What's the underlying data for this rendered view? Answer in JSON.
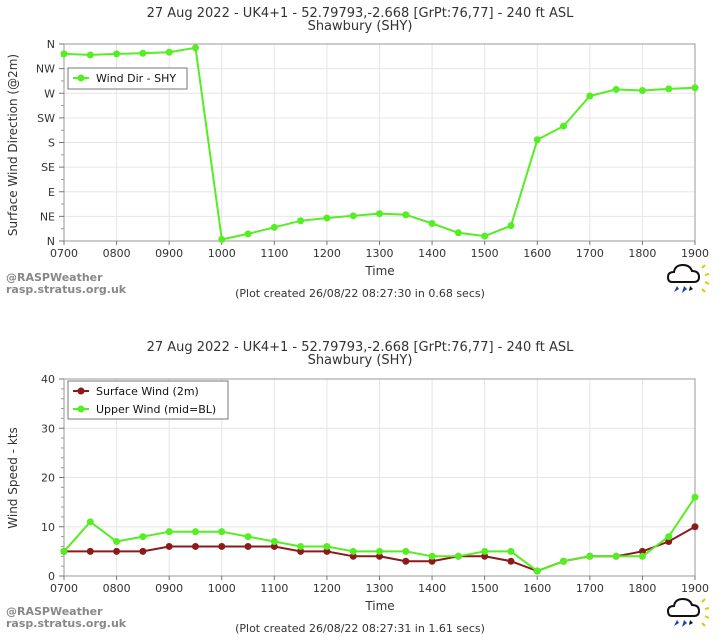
{
  "chart_data": [
    {
      "type": "line",
      "title": "27 Aug 2022 - UK4+1 - 52.79793,-2.668 [GrPt:76,77]  - 240 ft ASL",
      "subtitle": "Shawbury (SHY)",
      "xlabel": "Time",
      "ylabel": "Surface Wind Direction (@2m)",
      "x_ticks": [
        "0700",
        "0800",
        "0900",
        "1000",
        "1100",
        "1200",
        "1300",
        "1400",
        "1500",
        "1600",
        "1700",
        "1800",
        "1900"
      ],
      "y_ticks": [
        "N",
        "NE",
        "E",
        "SE",
        "S",
        "SW",
        "W",
        "NW",
        "N"
      ],
      "ylim": [
        0,
        360
      ],
      "grid": true,
      "legend": "top-left",
      "footer": "(Plot created 26/08/22 08:27:30 in 0.68 secs)",
      "series": [
        {
          "name": "Wind Dir - SHY",
          "color": "#55ee22",
          "x": [
            7.0,
            7.5,
            8.0,
            8.5,
            9.0,
            9.5,
            10.0,
            10.5,
            11.0,
            11.5,
            12.0,
            12.5,
            13.0,
            13.5,
            14.0,
            14.5,
            15.0,
            15.5,
            16.0,
            16.5,
            17.0,
            17.5,
            18.0,
            18.5,
            19.0
          ],
          "values": [
            342,
            340,
            342,
            343,
            345,
            353,
            3,
            13,
            25,
            37,
            42,
            46,
            50,
            48,
            32,
            15,
            9,
            28,
            185,
            210,
            265,
            277,
            275,
            278,
            280
          ]
        }
      ]
    },
    {
      "type": "line",
      "title": "27 Aug 2022 - UK4+1 - 52.79793,-2.668 [GrPt:76,77]  - 240 ft ASL",
      "subtitle": "Shawbury (SHY)",
      "xlabel": "Time",
      "ylabel": "Wind Speed - kts",
      "x_ticks": [
        "0700",
        "0800",
        "0900",
        "1000",
        "1100",
        "1200",
        "1300",
        "1400",
        "1500",
        "1600",
        "1700",
        "1800",
        "1900"
      ],
      "y_ticks": [
        "0",
        "10",
        "20",
        "30",
        "40"
      ],
      "ylim": [
        0,
        40
      ],
      "grid": true,
      "legend": "top-left",
      "footer": "(Plot created 26/08/22 08:27:31 in 1.61 secs)",
      "series": [
        {
          "name": "Surface Wind (2m)",
          "color": "#8b1a1a",
          "x": [
            7.0,
            7.5,
            8.0,
            8.5,
            9.0,
            9.5,
            10.0,
            10.5,
            11.0,
            11.5,
            12.0,
            12.5,
            13.0,
            13.5,
            14.0,
            14.5,
            15.0,
            15.5,
            16.0,
            16.5,
            17.0,
            17.5,
            18.0,
            18.5,
            19.0
          ],
          "values": [
            5,
            5,
            5,
            5,
            6,
            6,
            6,
            6,
            6,
            5,
            5,
            4,
            4,
            3,
            3,
            4,
            4,
            3,
            1,
            3,
            4,
            4,
            5,
            7,
            10
          ]
        },
        {
          "name": "Upper Wind (mid=BL)",
          "color": "#55ee22",
          "x": [
            7.0,
            7.5,
            8.0,
            8.5,
            9.0,
            9.5,
            10.0,
            10.5,
            11.0,
            11.5,
            12.0,
            12.5,
            13.0,
            13.5,
            14.0,
            14.5,
            15.0,
            15.5,
            16.0,
            16.5,
            17.0,
            17.5,
            18.0,
            18.5,
            19.0
          ],
          "values": [
            5,
            11,
            7,
            8,
            9,
            9,
            9,
            8,
            7,
            6,
            6,
            5,
            5,
            5,
            4,
            4,
            5,
            5,
            1,
            3,
            4,
            4,
            4,
            8,
            16
          ]
        }
      ]
    }
  ],
  "watermark": {
    "brand": "@RASPWeather",
    "site": "rasp.stratus.org.uk"
  },
  "icon": "weather-cloud-sun-rain-icon"
}
